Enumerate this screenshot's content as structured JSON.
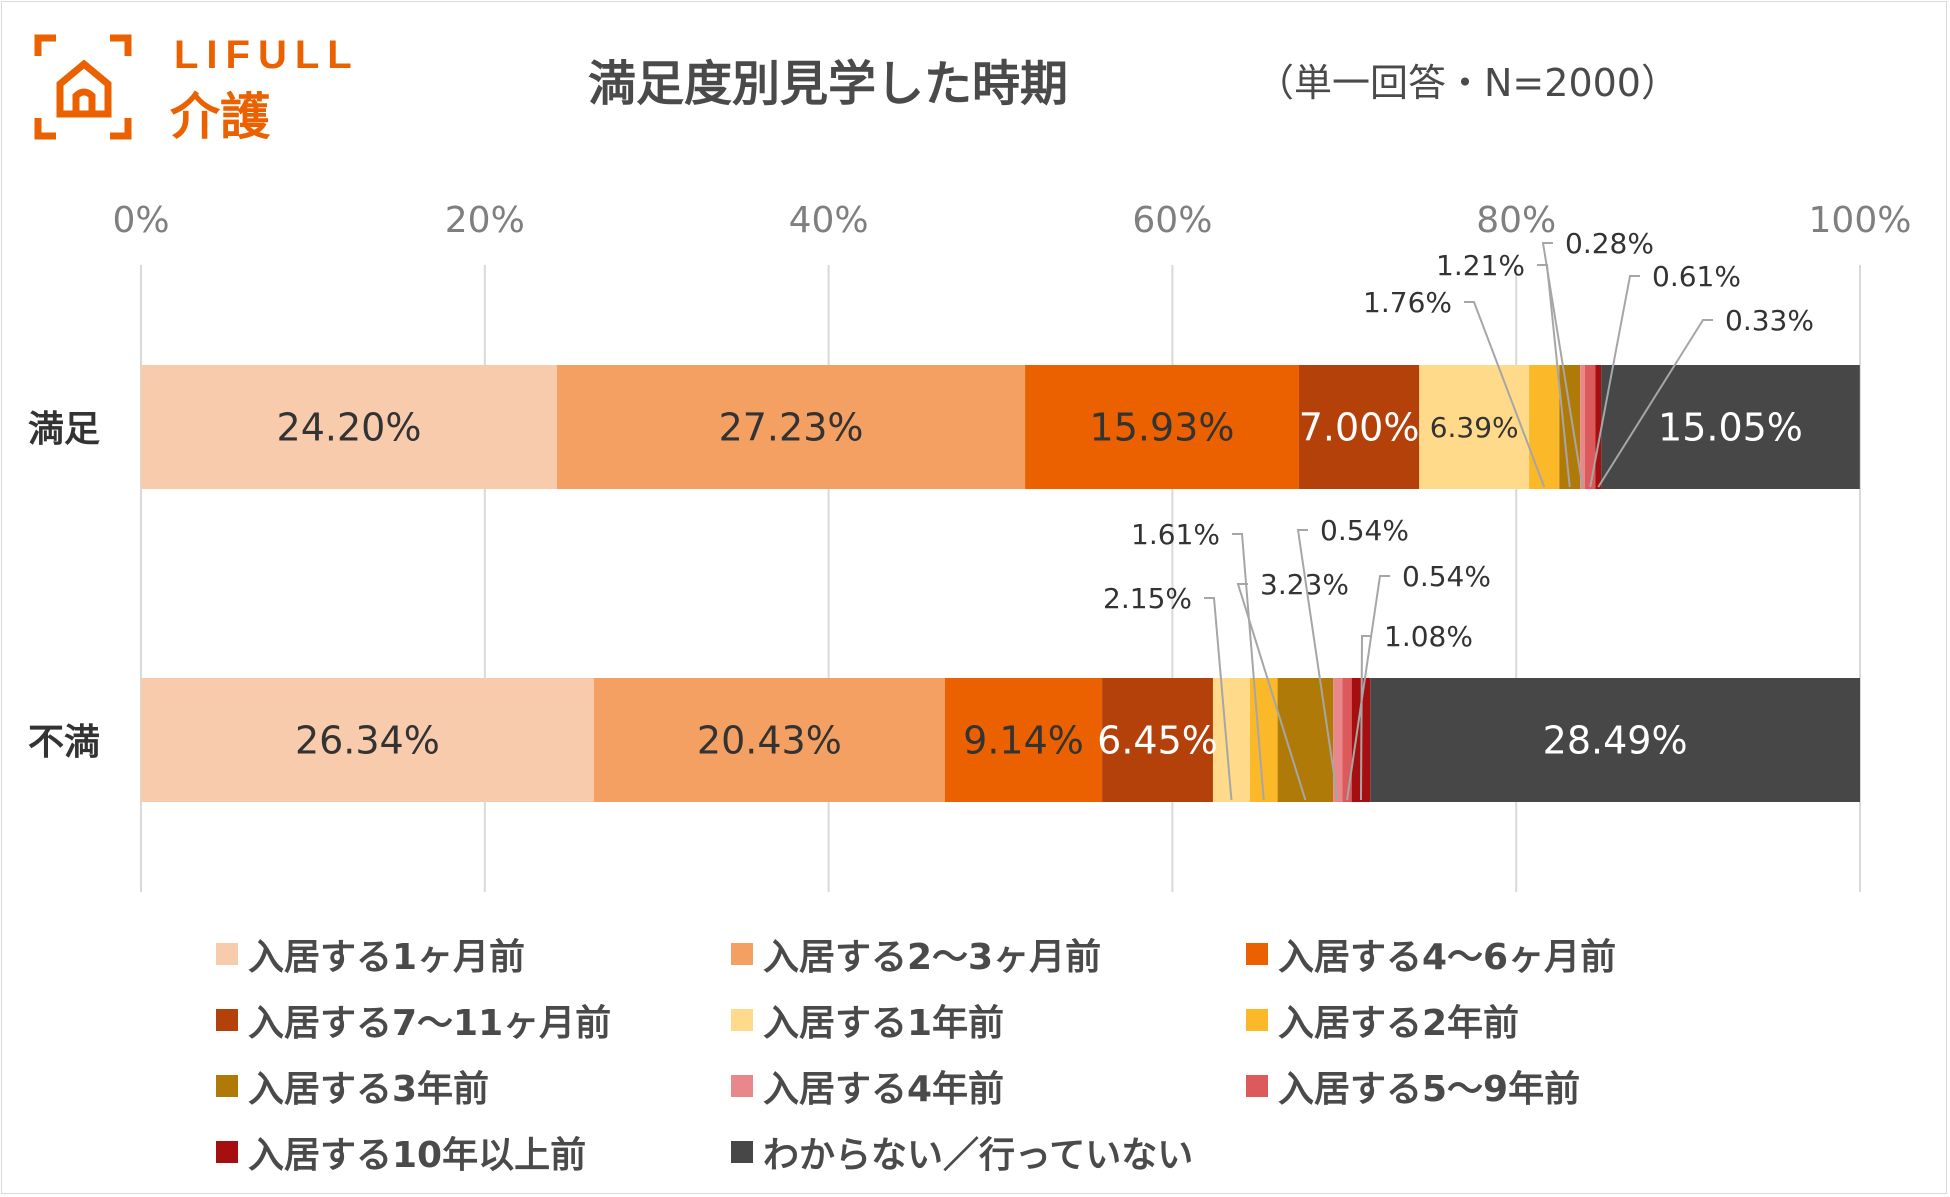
{
  "header": {
    "logo_brand": "LIFULL",
    "logo_sub": "介護",
    "title": "満足度別見学した時期",
    "subtitle": "（単一回答・N=2000）"
  },
  "chart_data": {
    "type": "bar",
    "orientation": "horizontal",
    "stacked": "percent",
    "title": "満足度別見学した時期",
    "subtitle": "（単一回答・N=2000）",
    "xlim": [
      0,
      100
    ],
    "x_ticks": [
      "0%",
      "20%",
      "40%",
      "60%",
      "80%",
      "100%"
    ],
    "x_tick_values": [
      0,
      20,
      40,
      60,
      80,
      100
    ],
    "grid": true,
    "legend_position": "bottom",
    "categories": [
      "満足",
      "不満"
    ],
    "series": [
      {
        "name": "入居する1ヶ月前",
        "color": "#F8CBAD",
        "values": [
          24.2,
          26.34
        ],
        "labels": [
          "24.20%",
          "26.34%"
        ],
        "label_color": "#333333"
      },
      {
        "name": "入居する2〜3ヶ月前",
        "color": "#F4A062",
        "values": [
          27.23,
          20.43
        ],
        "labels": [
          "27.23%",
          "20.43%"
        ],
        "label_color": "#333333"
      },
      {
        "name": "入居する4〜6ヶ月前",
        "color": "#EB6100",
        "values": [
          15.93,
          9.14
        ],
        "labels": [
          "15.93%",
          "9.14%"
        ],
        "label_color": "#333333"
      },
      {
        "name": "入居する7〜11ヶ月前",
        "color": "#B5410A",
        "values": [
          7.0,
          6.45
        ],
        "labels": [
          "7.00%",
          "6.45%"
        ],
        "label_color": "#ffffff"
      },
      {
        "name": "入居する1年前",
        "color": "#FFDA8A",
        "values": [
          6.39,
          2.15
        ],
        "labels": [
          "6.39%",
          "2.15%"
        ],
        "label_color": "#333333"
      },
      {
        "name": "入居する2年前",
        "color": "#FBB829",
        "values": [
          1.76,
          1.61
        ],
        "labels": [
          "1.76%",
          "1.61%"
        ],
        "label_color": "#333333"
      },
      {
        "name": "入居する3年前",
        "color": "#B07A08",
        "values": [
          1.21,
          3.23
        ],
        "labels": [
          "1.21%",
          "3.23%"
        ],
        "label_color": "#333333"
      },
      {
        "name": "入居する4年前",
        "color": "#E8888A",
        "values": [
          0.28,
          0.54
        ],
        "labels": [
          "0.28%",
          "0.54%"
        ],
        "label_color": "#333333"
      },
      {
        "name": "入居する5〜9年前",
        "color": "#DC5A5C",
        "values": [
          0.61,
          0.54
        ],
        "labels": [
          "0.61%",
          "0.54%"
        ],
        "label_color": "#333333"
      },
      {
        "name": "入居する10年以上前",
        "color": "#A50F0F",
        "values": [
          0.33,
          1.08
        ],
        "labels": [
          "0.33%",
          "1.08%"
        ],
        "label_color": "#333333"
      },
      {
        "name": "わからない／行っていない",
        "color": "#474747",
        "values": [
          15.05,
          28.49
        ],
        "labels": [
          "15.05%",
          "28.49%"
        ],
        "label_color": "#ffffff"
      }
    ]
  }
}
